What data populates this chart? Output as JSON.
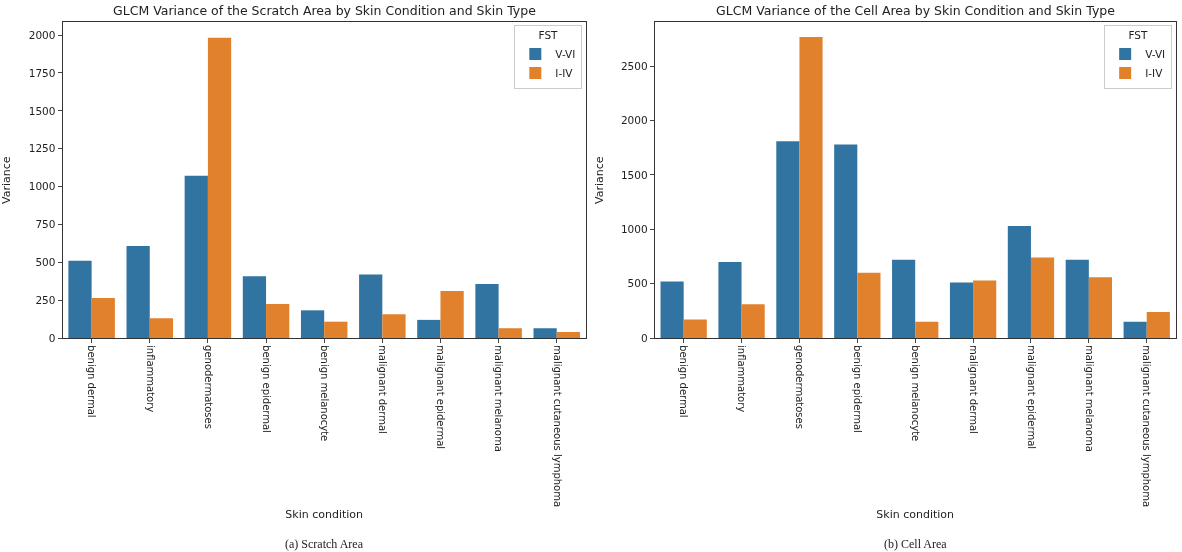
{
  "chart_data": [
    {
      "type": "bar",
      "title": "GLCM Variance of the Scratch Area by Skin Condition and Skin Type",
      "xlabel": "Skin condition",
      "ylabel": "Variance",
      "legend_title": "FST",
      "legend": "top right",
      "categories": [
        "benign dermal",
        "inflammatory",
        "genodermatoses",
        "benign epidermal",
        "benign melanocyte",
        "malignant dermal",
        "malignant epidermal",
        "malignant melanoma",
        "malignant cutaneous lymphoma"
      ],
      "series": [
        {
          "name": "V-VI",
          "color": "#3274a1",
          "values": [
            510,
            607,
            1072,
            408,
            183,
            420,
            120,
            357,
            65
          ]
        },
        {
          "name": "I-IV",
          "color": "#e1812c",
          "values": [
            265,
            130,
            1983,
            225,
            108,
            157,
            310,
            65,
            40
          ]
        }
      ],
      "ylim": [
        0,
        2085
      ],
      "yticks": [
        0,
        250,
        500,
        750,
        1000,
        1250,
        1500,
        1750,
        2000
      ],
      "annotations": [
        "(a) Scratch Area"
      ]
    },
    {
      "type": "bar",
      "title": "GLCM Variance of the Cell Area by Skin Condition and Skin Type",
      "xlabel": "Skin condition",
      "ylabel": "Variance",
      "legend_title": "FST",
      "legend": "top right",
      "categories": [
        "benign dermal",
        "inflammatory",
        "genodermatoses",
        "benign epidermal",
        "benign melanocyte",
        "malignant dermal",
        "malignant epidermal",
        "malignant melanoma",
        "malignant cutaneous lymphoma"
      ],
      "series": [
        {
          "name": "V-VI",
          "color": "#3274a1",
          "values": [
            520,
            700,
            1810,
            1780,
            720,
            510,
            1030,
            720,
            150
          ]
        },
        {
          "name": "I-IV",
          "color": "#e1812c",
          "values": [
            170,
            310,
            2770,
            600,
            150,
            530,
            740,
            560,
            240
          ]
        }
      ],
      "ylim": [
        0,
        2905
      ],
      "yticks": [
        0,
        500,
        1000,
        1500,
        2000,
        2500
      ],
      "annotations": [
        "(b) Cell Area"
      ]
    }
  ]
}
